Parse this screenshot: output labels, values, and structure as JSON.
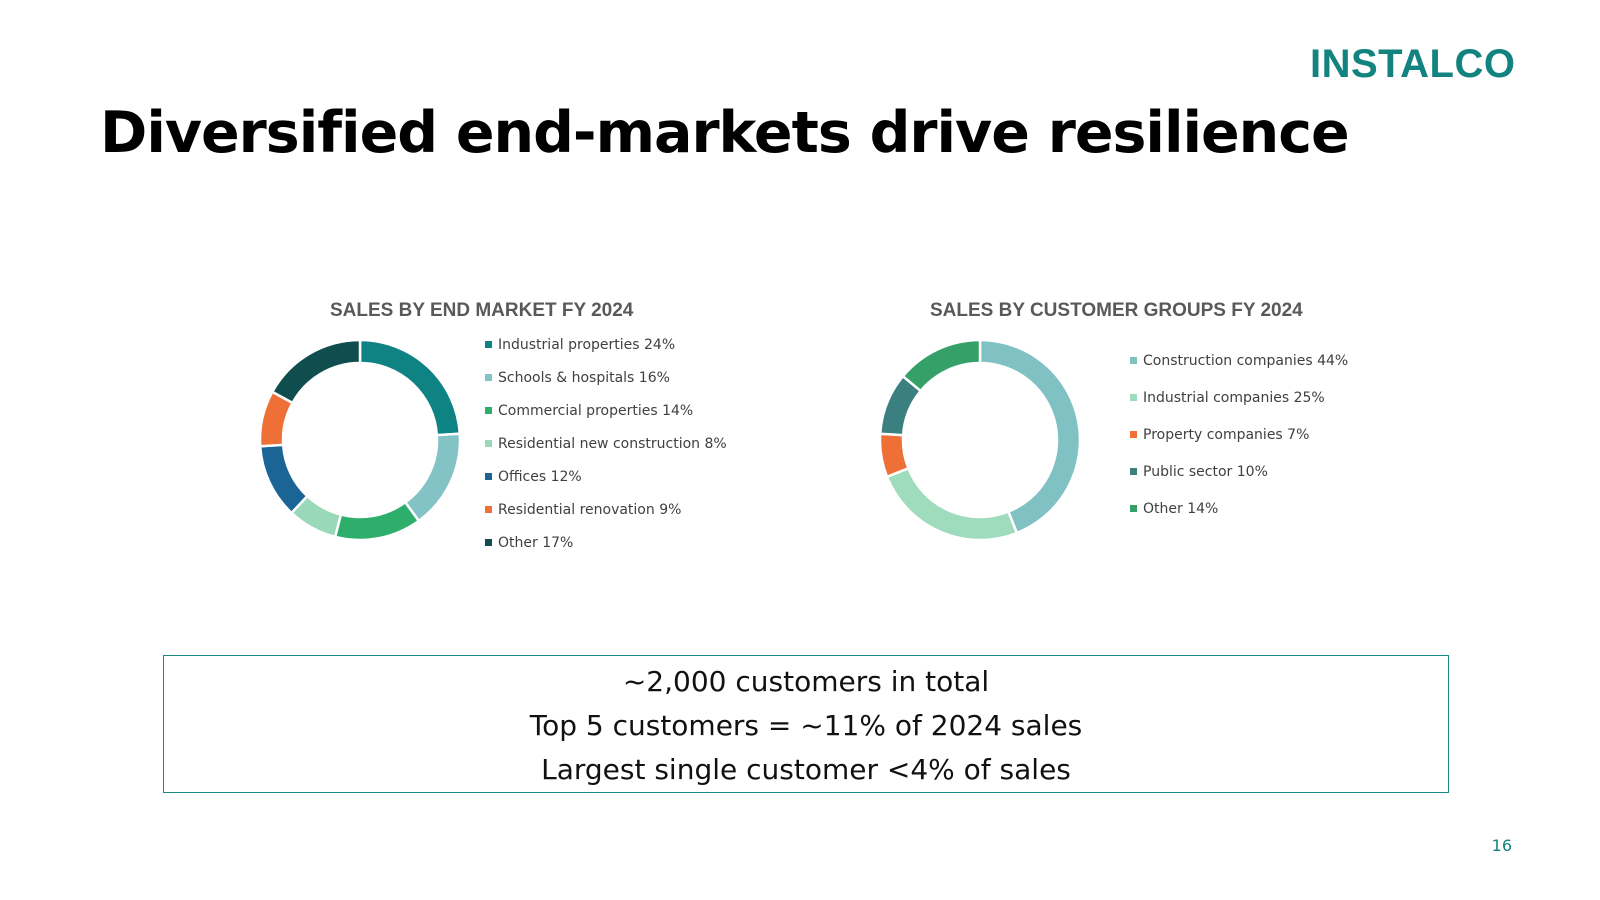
{
  "logo": "INSTALCO",
  "title": "Diversified end-markets drive resilience",
  "chart_data": [
    {
      "type": "pie",
      "title": "SALES BY END MARKET FY 2024",
      "categories": [
        "Industrial properties",
        "Schools & hospitals",
        "Commercial properties",
        "Residential new construction",
        "Offices",
        "Residential renovation",
        "Other"
      ],
      "values": [
        24,
        16,
        14,
        8,
        12,
        9,
        17
      ],
      "colors": [
        "#0f8283",
        "#84c3c5",
        "#2eae6b",
        "#99d8b8",
        "#1a6496",
        "#ee7036",
        "#0f4d4e"
      ],
      "legend_labels": [
        "Industrial properties 24%",
        "Schools & hospitals 16%",
        "Commercial properties 14%",
        "Residential new construction 8%",
        "Offices 12%",
        "Residential renovation 9%",
        "Other 17%"
      ],
      "legend_position": "right"
    },
    {
      "type": "pie",
      "title": "SALES BY CUSTOMER GROUPS FY 2024",
      "categories": [
        "Construction companies",
        "Industrial companies",
        "Property companies",
        "Public sector",
        "Other"
      ],
      "values": [
        44,
        25,
        7,
        10,
        14
      ],
      "colors": [
        "#80c1c4",
        "#9fdbbd",
        "#ee7036",
        "#3b7f80",
        "#35a068"
      ],
      "legend_labels": [
        "Construction companies 44%",
        "Industrial companies 25%",
        "Property companies 7%",
        "Public sector 10%",
        "Other 14%"
      ],
      "legend_position": "right"
    }
  ],
  "callout": {
    "line1": "~2,000 customers in total",
    "line2": "Top 5 customers = ~11% of 2024 sales",
    "line3": "Largest single customer <4% of sales"
  },
  "page_number": "16"
}
